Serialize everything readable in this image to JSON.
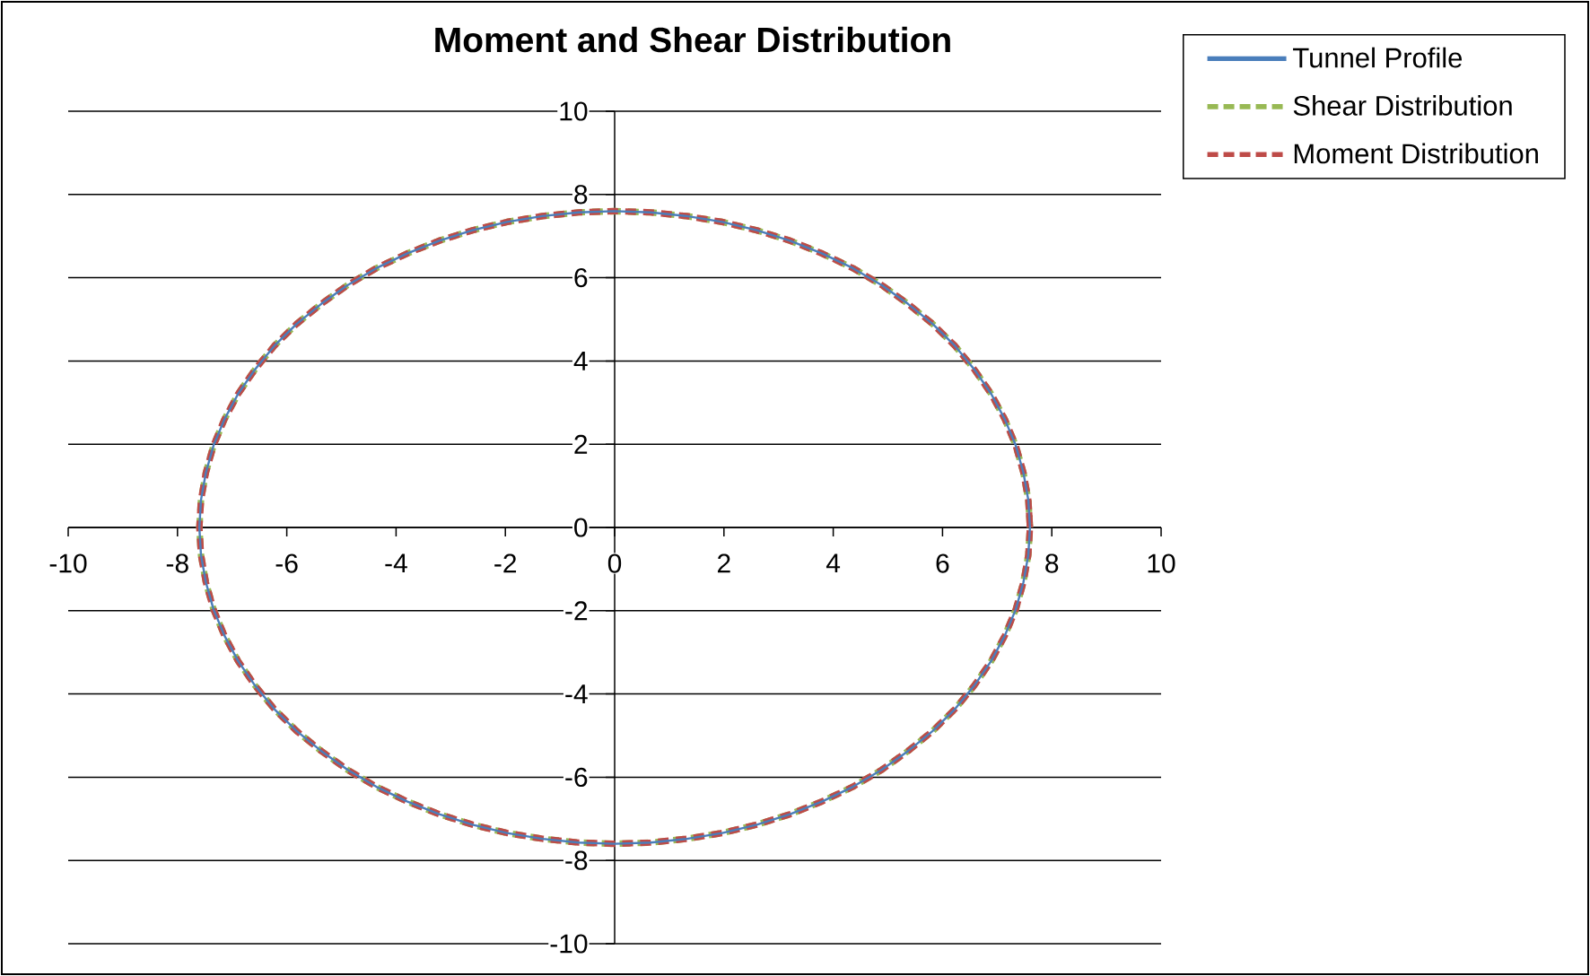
{
  "chart_data": {
    "type": "line",
    "title": "Moment and Shear Distribution",
    "x": [
      7.6,
      7.57,
      7.48,
      7.34,
      7.14,
      6.89,
      6.58,
      6.23,
      5.82,
      5.37,
      4.89,
      4.36,
      3.8,
      3.21,
      2.6,
      1.97,
      1.32,
      0.66,
      0,
      -0.66,
      -1.32,
      -1.97,
      -2.6,
      -3.21,
      -3.8,
      -4.36,
      -4.89,
      -5.37,
      -5.82,
      -6.23,
      -6.58,
      -6.89,
      -7.14,
      -7.34,
      -7.48,
      -7.57,
      -7.6,
      -7.57,
      -7.48,
      -7.34,
      -7.14,
      -6.89,
      -6.58,
      -6.23,
      -5.82,
      -5.37,
      -4.89,
      -4.36,
      -3.8,
      -3.21,
      -2.6,
      -1.97,
      -1.32,
      -0.66,
      0,
      0.66,
      1.32,
      1.97,
      2.6,
      3.21,
      3.8,
      4.36,
      4.89,
      5.37,
      5.82,
      6.23,
      6.58,
      6.89,
      7.14,
      7.34,
      7.48,
      7.57,
      7.6,
      7.57
    ],
    "series": [
      {
        "name": "Tunnel Profile",
        "color": "#4a7ebb",
        "line_style": "solid",
        "values": [
          0,
          0.66,
          1.32,
          1.97,
          2.6,
          3.21,
          3.8,
          4.36,
          4.89,
          5.37,
          5.82,
          6.23,
          6.58,
          6.89,
          7.14,
          7.34,
          7.48,
          7.57,
          7.6,
          7.57,
          7.48,
          7.34,
          7.14,
          6.89,
          6.58,
          6.23,
          5.82,
          5.37,
          4.89,
          4.36,
          3.8,
          3.21,
          2.6,
          1.97,
          1.32,
          0.66,
          0,
          -0.66,
          -1.32,
          -1.97,
          -2.6,
          -3.21,
          -3.8,
          -4.36,
          -4.89,
          -5.37,
          -5.82,
          -6.23,
          -6.58,
          -6.89,
          -7.14,
          -7.34,
          -7.48,
          -7.57,
          -7.6,
          -7.57,
          -7.48,
          -7.34,
          -7.14,
          -6.89,
          -6.58,
          -6.23,
          -5.82,
          -5.37,
          -4.89,
          -4.36,
          -3.8,
          -3.21,
          -2.6,
          -1.97,
          -1.32,
          -0.66,
          0,
          0.66
        ]
      },
      {
        "name": "Shear Distribution",
        "color": "#98b954",
        "line_style": "dashed",
        "values": [
          0,
          0.66,
          1.32,
          1.97,
          2.6,
          3.21,
          3.8,
          4.36,
          4.89,
          5.37,
          5.82,
          6.23,
          6.58,
          6.89,
          7.14,
          7.34,
          7.48,
          7.57,
          7.6,
          7.57,
          7.48,
          7.34,
          7.14,
          6.89,
          6.58,
          6.23,
          5.82,
          5.37,
          4.89,
          4.36,
          3.8,
          3.21,
          2.6,
          1.97,
          1.32,
          0.66,
          0,
          -0.66,
          -1.32,
          -1.97,
          -2.6,
          -3.21,
          -3.8,
          -4.36,
          -4.89,
          -5.37,
          -5.82,
          -6.23,
          -6.58,
          -6.89,
          -7.14,
          -7.34,
          -7.48,
          -7.57,
          -7.6,
          -7.57,
          -7.48,
          -7.34,
          -7.14,
          -6.89,
          -6.58,
          -6.23,
          -5.82,
          -5.37,
          -4.89,
          -4.36,
          -3.8,
          -3.21,
          -2.6,
          -1.97,
          -1.32,
          -0.66,
          0,
          0.66
        ]
      },
      {
        "name": "Moment Distribution",
        "color": "#be4b48",
        "line_style": "dashed",
        "values": [
          0,
          0.66,
          1.32,
          1.97,
          2.6,
          3.21,
          3.8,
          4.36,
          4.89,
          5.37,
          5.82,
          6.23,
          6.58,
          6.89,
          7.14,
          7.34,
          7.48,
          7.57,
          7.6,
          7.57,
          7.48,
          7.34,
          7.14,
          6.89,
          6.58,
          6.23,
          5.82,
          5.37,
          4.89,
          4.36,
          3.8,
          3.21,
          2.6,
          1.97,
          1.32,
          0.66,
          0,
          -0.66,
          -1.32,
          -1.97,
          -2.6,
          -3.21,
          -3.8,
          -4.36,
          -4.89,
          -5.37,
          -5.82,
          -6.23,
          -6.58,
          -6.89,
          -7.14,
          -7.34,
          -7.48,
          -7.57,
          -7.6,
          -7.57,
          -7.48,
          -7.34,
          -7.14,
          -6.89,
          -6.58,
          -6.23,
          -5.82,
          -5.37,
          -4.89,
          -4.36,
          -3.8,
          -3.21,
          -2.6,
          -1.97,
          -1.32,
          -0.66,
          0,
          0.66
        ]
      }
    ],
    "xlim": [
      -10,
      10
    ],
    "ylim": [
      -10,
      10
    ],
    "xticks": [
      -10,
      -8,
      -6,
      -4,
      -2,
      0,
      2,
      4,
      6,
      8,
      10
    ],
    "yticks": [
      -10,
      -8,
      -6,
      -4,
      -2,
      0,
      2,
      4,
      6,
      8,
      10
    ],
    "grid": "y",
    "legend": "top right"
  }
}
